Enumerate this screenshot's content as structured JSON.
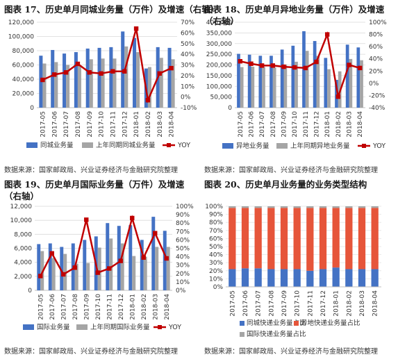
{
  "panels": [
    {
      "title": "图表 17、历史单月同城业务量（万件）及增速（右轴）",
      "source": "数据来源：国家邮政局、兴业证券经济与金融研究院整理"
    },
    {
      "title": "图表 18、历史单月异地业务量（万件）及增速（右轴）",
      "source": "数据来源：国家邮政局、兴业证券经济与金融研究院整理"
    },
    {
      "title": "图表 19、历史单月国际业务量（万件）及增速（右轴）",
      "source": "数据来源：国家邮政局、兴业证券经济与金融研究院整理"
    },
    {
      "title": "图表 20、历史单月业务量的业务类型结构",
      "source": "数据来源：国家邮政局、兴业证券经济与金融研究院整理"
    }
  ],
  "colors": {
    "current": "#4472C4",
    "prior": "#A5A5A5",
    "yoy": "#C00000",
    "orange": "#E6553A"
  },
  "chart_data": [
    {
      "type": "bar",
      "categories": [
        "2017-05",
        "2017-06",
        "2017-07",
        "2017-08",
        "2017-09",
        "2017-10",
        "2017-11",
        "2017-12",
        "2018-01",
        "2018-02",
        "2018-03",
        "2018-04"
      ],
      "ylim": [
        0,
        120000
      ],
      "y2lim": [
        -10,
        70
      ],
      "yticks": [
        "0",
        "20,000",
        "40,000",
        "60,000",
        "80,000",
        "100,000",
        "120,000"
      ],
      "y2ticks": [
        "-10%",
        "0%",
        "10%",
        "20%",
        "30%",
        "40%",
        "50%",
        "60%",
        "70%"
      ],
      "series": [
        {
          "name": "同城业务量",
          "kind": "bar",
          "values": [
            73000,
            81000,
            76000,
            78000,
            83000,
            84000,
            85000,
            107000,
            98000,
            55000,
            85000,
            84000
          ]
        },
        {
          "name": "上年同期同城业务量",
          "kind": "bar",
          "values": [
            62000,
            64000,
            60000,
            59000,
            68000,
            69000,
            69000,
            86000,
            78000,
            57000,
            70000,
            68000
          ]
        },
        {
          "name": "YOY",
          "kind": "line",
          "axis": "right",
          "values": [
            16,
            21,
            23,
            31,
            23,
            22,
            24,
            24,
            64,
            -3,
            22,
            27
          ]
        }
      ]
    },
    {
      "type": "bar",
      "categories": [
        "2017-05",
        "2017-06",
        "2017-07",
        "2017-08",
        "2017-09",
        "2017-10",
        "2017-11",
        "2017-12",
        "2018-01",
        "2018-02",
        "2018-03",
        "2018-04"
      ],
      "ylim": [
        0,
        400000
      ],
      "y2lim": [
        -40,
        100
      ],
      "yticks": [
        "0",
        "50,000",
        "100,000",
        "150,000",
        "200,000",
        "250,000",
        "300,000",
        "350,000",
        "400,000"
      ],
      "y2ticks": [
        "-40%",
        "-20%",
        "0%",
        "20%",
        "40%",
        "60%",
        "80%",
        "100%"
      ],
      "series": [
        {
          "name": "异地业务量",
          "kind": "bar",
          "values": [
            252000,
            248000,
            243000,
            243000,
            272000,
            290000,
            358000,
            312000,
            233000,
            130000,
            295000,
            282000
          ]
        },
        {
          "name": "上年同期异地业务量",
          "kind": "bar",
          "values": [
            190000,
            192000,
            190000,
            188000,
            202000,
            215000,
            266000,
            243000,
            180000,
            170000,
            228000,
            222000
          ]
        },
        {
          "name": "YOY",
          "kind": "line",
          "axis": "right",
          "values": [
            36,
            32,
            29,
            29,
            27,
            26,
            25,
            35,
            80,
            -22,
            30,
            25
          ]
        }
      ]
    },
    {
      "type": "bar",
      "categories": [
        "2017-05",
        "2017-06",
        "2017-07",
        "2017-08",
        "2017-09",
        "2017-10",
        "2017-11",
        "2017-12",
        "2018-01",
        "2018-02",
        "2018-03",
        "2018-04"
      ],
      "ylim": [
        0,
        12000
      ],
      "y2lim": [
        0,
        100
      ],
      "yticks": [
        "0",
        "2,000",
        "4,000",
        "6,000",
        "8,000",
        "10,000",
        "12,000"
      ],
      "y2ticks": [
        "0%",
        "10%",
        "20%",
        "30%",
        "40%",
        "50%",
        "60%",
        "70%",
        "80%",
        "90%",
        "100%"
      ],
      "series": [
        {
          "name": "国际业务量",
          "kind": "bar",
          "values": [
            6600,
            6700,
            6200,
            6700,
            7200,
            7700,
            9600,
            9200,
            9300,
            7200,
            10500,
            8500
          ]
        },
        {
          "name": "上年同期国际业务量",
          "kind": "bar",
          "values": [
            5600,
            4600,
            5200,
            3800,
            3900,
            6100,
            7400,
            6700,
            4900,
            4800,
            6200,
            6200
          ]
        },
        {
          "name": "YOY",
          "kind": "line",
          "axis": "right",
          "values": [
            17,
            44,
            19,
            27,
            84,
            21,
            26,
            35,
            86,
            39,
            68,
            38
          ]
        }
      ]
    },
    {
      "type": "bar",
      "stacked": true,
      "categories": [
        "2017-05",
        "2017-06",
        "2017-07",
        "2017-08",
        "2017-09",
        "2017-10",
        "2017-11",
        "2017-12",
        "2018-01",
        "2018-02",
        "2018-03",
        "2018-04"
      ],
      "ylim": [
        0,
        100
      ],
      "yticks": [
        "0%",
        "10%",
        "20%",
        "30%",
        "40%",
        "50%",
        "60%",
        "70%",
        "80%",
        "90%",
        "100%"
      ],
      "series": [
        {
          "name": "同城快递业务量占比",
          "values": [
            22,
            23,
            23,
            22,
            22,
            22,
            20,
            22,
            24,
            22,
            22,
            22
          ]
        },
        {
          "name": "异地快递业务量占比",
          "values": [
            76,
            75,
            75,
            76,
            76,
            76,
            78,
            76,
            74,
            76,
            76,
            76
          ]
        },
        {
          "name": "国际快递业务量占比",
          "values": [
            2,
            2,
            2,
            2,
            2,
            2,
            2,
            2,
            2,
            2,
            2,
            2
          ]
        }
      ]
    }
  ]
}
